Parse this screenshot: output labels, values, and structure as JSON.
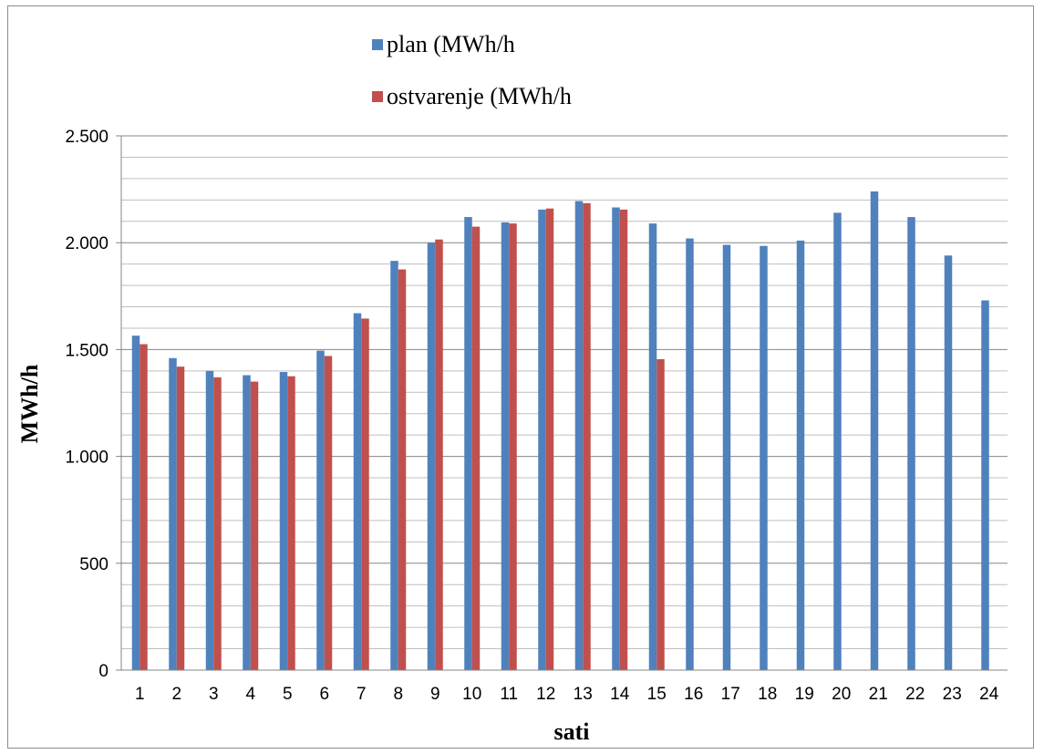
{
  "chart_data": {
    "type": "bar",
    "title": "",
    "xlabel": "sati",
    "ylabel": "MWh/h",
    "categories": [
      "1",
      "2",
      "3",
      "4",
      "5",
      "6",
      "7",
      "8",
      "9",
      "10",
      "11",
      "12",
      "13",
      "14",
      "15",
      "16",
      "17",
      "18",
      "19",
      "20",
      "21",
      "22",
      "23",
      "24"
    ],
    "series": [
      {
        "name": "plan (MWh/h",
        "color": "#4f81bd",
        "values": [
          1565,
          1460,
          1400,
          1380,
          1395,
          1495,
          1670,
          1915,
          2000,
          2120,
          2095,
          2155,
          2195,
          2165,
          2090,
          2020,
          1990,
          1985,
          2010,
          2140,
          2240,
          2120,
          1940,
          1730
        ]
      },
      {
        "name": "ostvarenje (MWh/h",
        "color": "#c0504d",
        "values": [
          1525,
          1420,
          1370,
          1350,
          1375,
          1470,
          1645,
          1875,
          2015,
          2075,
          2090,
          2160,
          2185,
          2155,
          1455,
          null,
          null,
          null,
          null,
          null,
          null,
          null,
          null,
          null
        ]
      }
    ],
    "ylim": [
      0,
      2500
    ],
    "yticks": [
      0,
      500,
      1000,
      1500,
      2000,
      2500
    ],
    "ytick_labels": [
      "0",
      "500",
      "1.000",
      "1.500",
      "2.000",
      "2.500"
    ],
    "minor_grid_step": 100,
    "grid": true,
    "legend_position": "top"
  }
}
